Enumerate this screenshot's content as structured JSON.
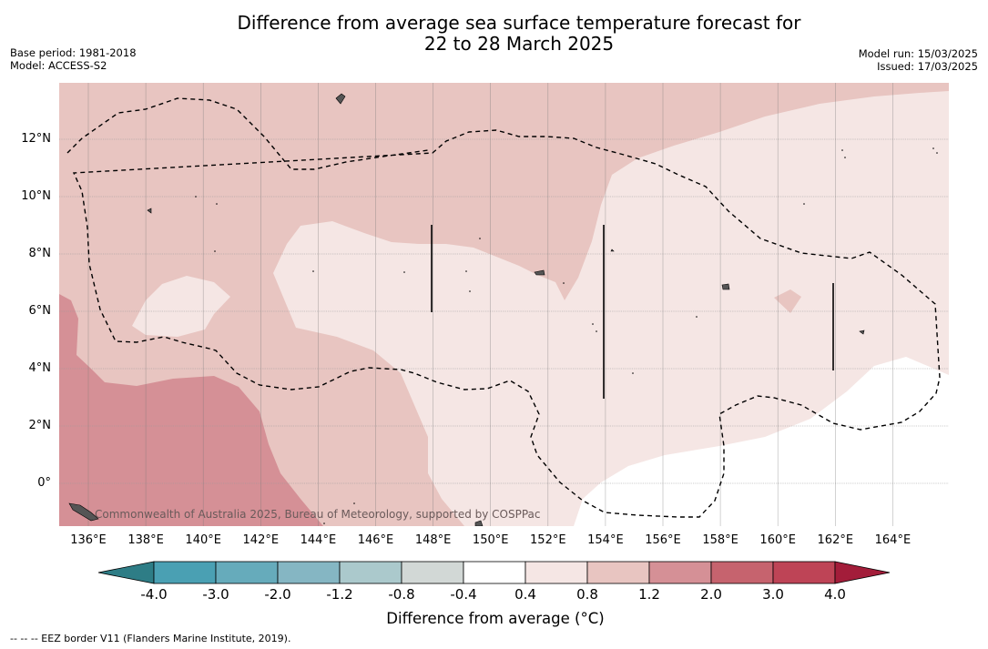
{
  "title_line1": "Difference from average sea surface temperature forecast for",
  "title_line2": "22 to 28 March 2025",
  "meta_left": [
    "Base period: 1981-2018",
    "Model: ACCESS-S2"
  ],
  "meta_right": [
    "Model run: 15/03/2025",
    "Issued: 17/03/2025"
  ],
  "longitude_labels": [
    "136°E",
    "138°E",
    "140°E",
    "142°E",
    "144°E",
    "146°E",
    "148°E",
    "150°E",
    "152°E",
    "154°E",
    "156°E",
    "158°E",
    "160°E",
    "162°E",
    "164°E"
  ],
  "latitude_labels": [
    "12°N",
    "10°N",
    "8°N",
    "6°N",
    "4°N",
    "2°N",
    "0°"
  ],
  "credit": "Commonwealth of Australia 2025, Bureau of Meteorology, supported by COSPPac",
  "colorbar": {
    "ticks": [
      "-4.0",
      "-3.0",
      "-2.0",
      "-1.2",
      "-0.8",
      "-0.4",
      "0.4",
      "0.8",
      "1.2",
      "2.0",
      "3.0",
      "4.0"
    ],
    "colors": [
      "#2e7d86",
      "#4aa0b3",
      "#66abbb",
      "#85b6c3",
      "#abc9cc",
      "#d2d8d6",
      "#ffffff",
      "#f5e6e4",
      "#e8c5c1",
      "#d59096",
      "#c6636e",
      "#be4456",
      "#a31d3a"
    ],
    "label": "Difference from average ($^\\circ$C)"
  },
  "legend_text": "--  --  -- EEZ border V11 (Flanders Marine Institute, 2019).",
  "map_colors": {
    "band_0_4_0_8": "#f5e6e4",
    "band_0_8_1_2": "#e8c5c1",
    "band_1_2_2_0": "#d59096",
    "band_neutral": "#ffffff",
    "land": "#555555"
  }
}
